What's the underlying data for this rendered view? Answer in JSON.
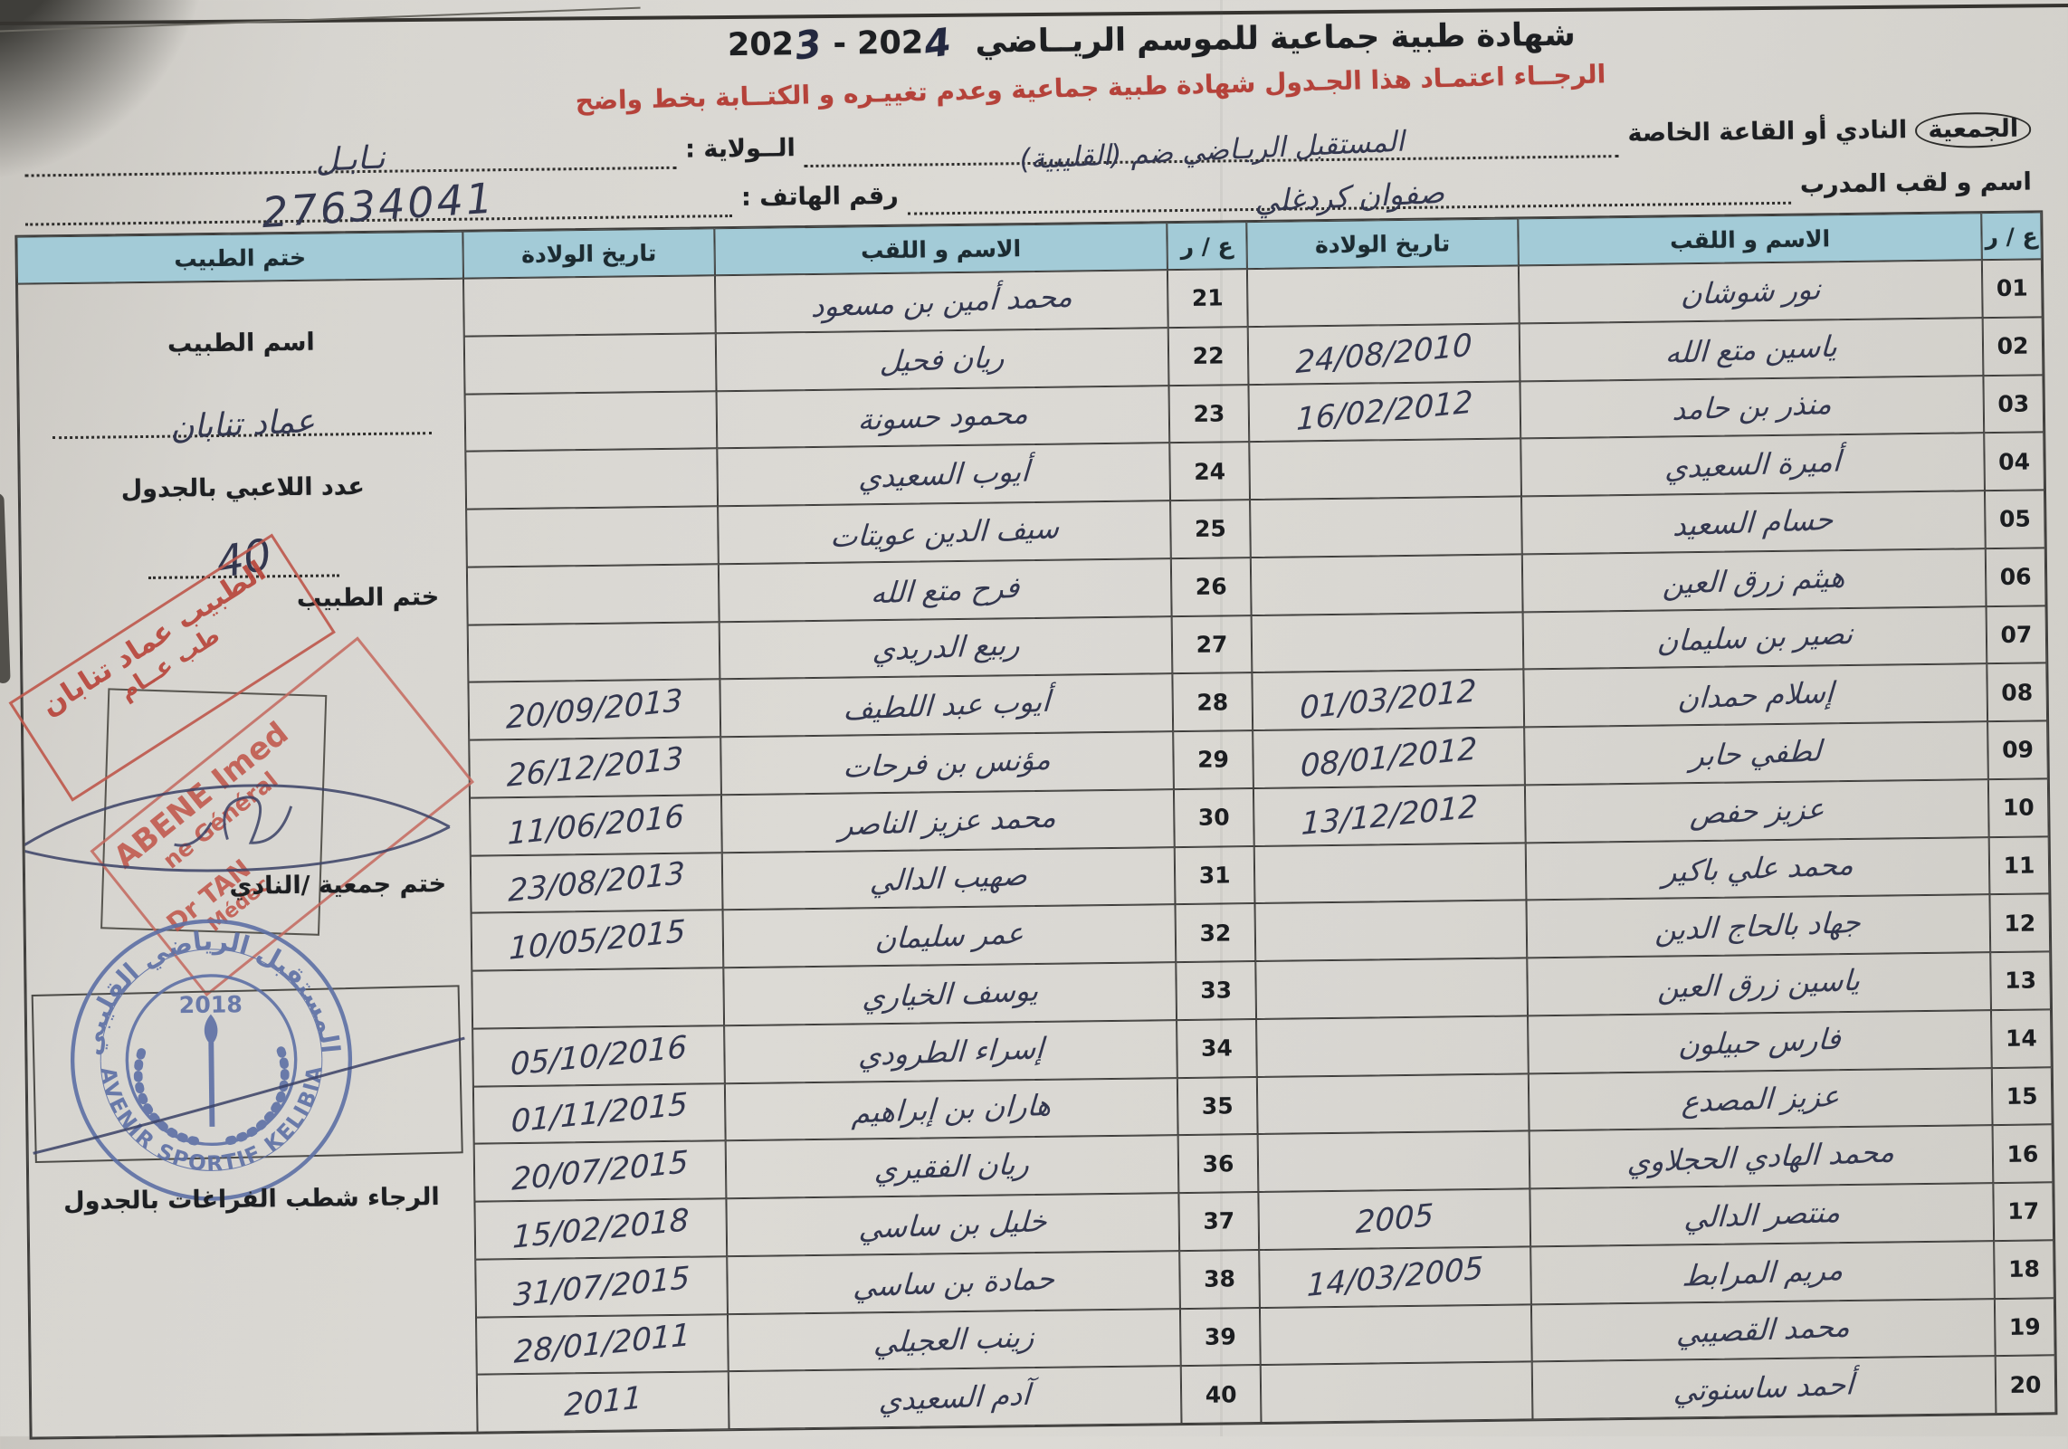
{
  "header": {
    "title": "شهادة طبية جماعية  للموسم الريــاضي",
    "season": {
      "p1": "202",
      "hw1": "3",
      "p2": " - 202",
      "hw2": "4"
    },
    "notice": "الرجــاء اعتمـاد هذا الجـدول  شهادة طبية جماعية وعدم تغييـره و الكتــابة بخط واضح",
    "fields": {
      "club_label_circled": "الجمعية",
      "club_label_rest": "النادي أو القاعة الخاصة",
      "club_value": "المستقبل الريـاضي ضم (القليبية)",
      "state_label": "الــولاية :",
      "state_value": "نـابـل",
      "coach_label": "اسم و لقب المدرب",
      "coach_value": "صفوان كردغلي",
      "phone_label": "رقم الهاتف :",
      "phone_value": "27634041"
    }
  },
  "table": {
    "headers": {
      "num": "ع / ر",
      "name": "الاسم و اللقب",
      "dob": "تاريخ الولادة",
      "stamp": "ختم الطبيب"
    },
    "rows_right": [
      {
        "num": "01",
        "name": "نور شوشان",
        "dob": ""
      },
      {
        "num": "02",
        "name": "ياسين متع الله",
        "dob": "24/08/2010"
      },
      {
        "num": "03",
        "name": "منذر بن حامد",
        "dob": "16/02/2012"
      },
      {
        "num": "04",
        "name": "أميرة السعيدي",
        "dob": ""
      },
      {
        "num": "05",
        "name": "حسام السعيد",
        "dob": ""
      },
      {
        "num": "06",
        "name": "هيثم زرق العين",
        "dob": ""
      },
      {
        "num": "07",
        "name": "نصير بن سليمان",
        "dob": ""
      },
      {
        "num": "08",
        "name": "إسلام حمدان",
        "dob": "01/03/2012"
      },
      {
        "num": "09",
        "name": "لطفي حابر",
        "dob": "08/01/2012"
      },
      {
        "num": "10",
        "name": "عزيز حفص",
        "dob": "13/12/2012"
      },
      {
        "num": "11",
        "name": "محمد علي باكير",
        "dob": ""
      },
      {
        "num": "12",
        "name": "جهاد بالحاج الدين",
        "dob": ""
      },
      {
        "num": "13",
        "name": "ياسين زرق العين",
        "dob": ""
      },
      {
        "num": "14",
        "name": "فارس حبيلون",
        "dob": ""
      },
      {
        "num": "15",
        "name": "عزيز المصدع",
        "dob": ""
      },
      {
        "num": "16",
        "name": "محمد الهادي الحجلاوي",
        "dob": ""
      },
      {
        "num": "17",
        "name": "منتصر الدالي",
        "dob": "2005"
      },
      {
        "num": "18",
        "name": "مريم المرابط",
        "dob": "14/03/2005"
      },
      {
        "num": "19",
        "name": "محمد القصيبي",
        "dob": ""
      },
      {
        "num": "20",
        "name": "أحمد ساسنوتي",
        "dob": ""
      }
    ],
    "rows_left": [
      {
        "num": "21",
        "name": "محمد أمين بن مسعود",
        "dob": ""
      },
      {
        "num": "22",
        "name": "ريان فحيل",
        "dob": ""
      },
      {
        "num": "23",
        "name": "محمود حسونة",
        "dob": ""
      },
      {
        "num": "24",
        "name": "أيوب السعيدي",
        "dob": ""
      },
      {
        "num": "25",
        "name": "سيف الدين عويتات",
        "dob": ""
      },
      {
        "num": "26",
        "name": "فرح متع الله",
        "dob": ""
      },
      {
        "num": "27",
        "name": "ربيع الدريدي",
        "dob": ""
      },
      {
        "num": "28",
        "name": "أيوب عبد اللطيف",
        "dob": "20/09/2013"
      },
      {
        "num": "29",
        "name": "مؤنس بن فرحات",
        "dob": "26/12/2013"
      },
      {
        "num": "30",
        "name": "محمد عزيز الناصر",
        "dob": "11/06/2016"
      },
      {
        "num": "31",
        "name": "صهيب الدالي",
        "dob": "23/08/2013"
      },
      {
        "num": "32",
        "name": "عمر سليمان",
        "dob": "10/05/2015"
      },
      {
        "num": "33",
        "name": "يوسف الخياري",
        "dob": ""
      },
      {
        "num": "34",
        "name": "إسراء الطرودي",
        "dob": "05/10/2016"
      },
      {
        "num": "35",
        "name": "هاران بن إبراهيم",
        "dob": "01/11/2015"
      },
      {
        "num": "36",
        "name": "ريان الفقيري",
        "dob": "20/07/2015"
      },
      {
        "num": "37",
        "name": "خليل بن ساسي",
        "dob": "15/02/2018"
      },
      {
        "num": "38",
        "name": "حمادة بن ساسي",
        "dob": "31/07/2015"
      },
      {
        "num": "39",
        "name": "زينب العجيلي",
        "dob": "28/01/2011"
      },
      {
        "num": "40",
        "name": "آدم السعيدي",
        "dob": "2011"
      }
    ]
  },
  "stamp_column": {
    "doctor_name_label": "اسم الطبيب",
    "doctor_name_value": "عماد تنابان",
    "players_count_label": "عدد اللاعبي بالجدول",
    "players_count_value": "40",
    "doctor_stamp_label": "ختم الطبيب",
    "red_stamp": {
      "line1": "الطبيب عماد تنابان",
      "line2": "طب عــام",
      "latin1": "ABENE Imed",
      "latin2": "ne Général",
      "latin3": "Dr TAN",
      "latin4": "Médec"
    },
    "club_stamp_label": "ختم جمعية /النادي",
    "blue_stamp": {
      "arc_top": "المستقبل الرياضي القليبي",
      "arc_bottom": "★ AVENIR SPORTIF KELIBIA ★",
      "year": "2018"
    },
    "footer_note": "الرجاء شطب  الفراغات بالجدول"
  }
}
